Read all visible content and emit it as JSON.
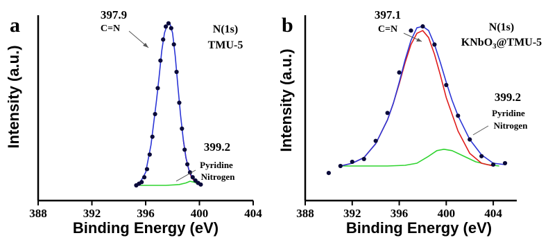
{
  "chart_data": [
    {
      "type": "line",
      "panel_label": "a",
      "xlabel": "Binding Energy (eV)",
      "ylabel": "Intensity (a.u.)",
      "xlim": [
        388,
        404
      ],
      "xticks": [
        388,
        392,
        396,
        400,
        404
      ],
      "ylim": [
        0,
        1.05
      ],
      "legend_text": [
        "N(1s)",
        "TMU-5"
      ],
      "annotations": [
        {
          "id": "peak-main-value",
          "text": "397.9",
          "x": 397.8,
          "y": 1.0
        },
        {
          "id": "peak-main-label",
          "text": "C=N"
        },
        {
          "id": "peak-minor-value",
          "text": "399.2",
          "x": 399.3,
          "y": 0.03
        },
        {
          "id": "peak-minor-label-1",
          "text": "Pyridine"
        },
        {
          "id": "peak-minor-label-2",
          "text": "Nitrogen"
        }
      ],
      "series": [
        {
          "id": "measured",
          "style": "points",
          "color": "#0a0a3a",
          "x": [
            395.3,
            395.5,
            395.7,
            395.9,
            396.1,
            396.3,
            396.5,
            396.7,
            396.9,
            397.1,
            397.3,
            397.5,
            397.7,
            397.9,
            398.1,
            398.3,
            398.5,
            398.7,
            398.9,
            399.1,
            399.3,
            399.5,
            399.7,
            399.9,
            400.1
          ],
          "y": [
            0.0,
            0.01,
            0.02,
            0.05,
            0.1,
            0.19,
            0.3,
            0.44,
            0.6,
            0.77,
            0.9,
            0.98,
            1.0,
            0.97,
            0.87,
            0.7,
            0.51,
            0.35,
            0.22,
            0.13,
            0.08,
            0.05,
            0.03,
            0.015,
            0.005
          ]
        },
        {
          "id": "envelope",
          "style": "line",
          "color": "#2b35d6",
          "x": [
            395.2,
            395.6,
            396.0,
            396.4,
            396.8,
            397.0,
            397.2,
            397.4,
            397.6,
            397.8,
            398.0,
            398.2,
            398.4,
            398.6,
            398.8,
            399.0,
            399.2,
            399.4,
            399.6,
            399.8,
            400.2
          ],
          "y": [
            0.0,
            0.02,
            0.08,
            0.25,
            0.52,
            0.67,
            0.83,
            0.94,
            0.99,
            1.0,
            0.94,
            0.8,
            0.61,
            0.43,
            0.28,
            0.17,
            0.1,
            0.06,
            0.035,
            0.02,
            0.005
          ]
        },
        {
          "id": "component-cn",
          "style": "line",
          "color": "#e01b1b",
          "x": [
            398.8,
            399.0,
            399.2,
            399.4,
            399.6,
            399.8,
            400.0
          ],
          "y": [
            0.28,
            0.17,
            0.1,
            0.05,
            0.03,
            0.015,
            0.005
          ]
        },
        {
          "id": "component-pyridine",
          "style": "line",
          "color": "#2ed32e",
          "x": [
            395.6,
            396.5,
            397.5,
            398.5,
            399.0,
            399.3,
            399.6,
            400.0
          ],
          "y": [
            0.0,
            0.0,
            0.0,
            0.005,
            0.015,
            0.025,
            0.02,
            0.005
          ]
        }
      ]
    },
    {
      "type": "line",
      "panel_label": "b",
      "xlabel": "Binding Energy (eV)",
      "ylabel": "Intensity (a.u.)",
      "xlim": [
        388,
        406
      ],
      "xticks": [
        388,
        392,
        396,
        400,
        404
      ],
      "ylim": [
        0,
        1.08
      ],
      "legend_text": [
        "N(1s)",
        "KNbO",
        "3",
        "@TMU-5"
      ],
      "annotations": [
        {
          "id": "peak-main-value",
          "text": "397.1",
          "x": 397.4,
          "y": 1.0
        },
        {
          "id": "peak-main-label",
          "text": "C=N"
        },
        {
          "id": "peak-minor-value",
          "text": "399.2",
          "x": 399.8,
          "y": 0.15
        },
        {
          "id": "peak-minor-label-1",
          "text": "Pyridine"
        },
        {
          "id": "peak-minor-label-2",
          "text": "Nitrogen"
        }
      ],
      "series": [
        {
          "id": "measured",
          "style": "points",
          "color": "#0a0a3a",
          "x": [
            390,
            391,
            392,
            393,
            394,
            395,
            396,
            397,
            398,
            399,
            400,
            401,
            402,
            403,
            404,
            405
          ],
          "y": [
            -0.05,
            0.0,
            0.03,
            0.05,
            0.18,
            0.38,
            0.67,
            0.97,
            1.0,
            0.87,
            0.58,
            0.36,
            0.19,
            0.07,
            0.01,
            0.02
          ]
        },
        {
          "id": "envelope",
          "style": "line",
          "color": "#2b35d6",
          "x": [
            391,
            392,
            393,
            394,
            395,
            395.5,
            396,
            396.5,
            397,
            397.5,
            398,
            398.5,
            399,
            399.5,
            400,
            400.5,
            401,
            402,
            403,
            404,
            405
          ],
          "y": [
            0.0,
            0.02,
            0.06,
            0.16,
            0.33,
            0.45,
            0.6,
            0.76,
            0.9,
            0.99,
            1.0,
            0.97,
            0.87,
            0.74,
            0.6,
            0.47,
            0.36,
            0.19,
            0.08,
            0.02,
            0.01
          ]
        },
        {
          "id": "component-cn",
          "style": "line",
          "color": "#e01b1b",
          "x": [
            391,
            392,
            393,
            394,
            395,
            395.5,
            396,
            396.5,
            397,
            397.5,
            398,
            398.5,
            399,
            399.5,
            400,
            401,
            402,
            403,
            404
          ],
          "y": [
            0.0,
            0.02,
            0.06,
            0.16,
            0.33,
            0.45,
            0.59,
            0.74,
            0.87,
            0.95,
            0.97,
            0.92,
            0.8,
            0.65,
            0.49,
            0.25,
            0.09,
            0.02,
            0.0
          ]
        },
        {
          "id": "component-pyridine",
          "style": "line",
          "color": "#2ed32e",
          "x": [
            391,
            393,
            395,
            396.5,
            397.5,
            398.5,
            399.2,
            399.8,
            400.5,
            401.5,
            402.5,
            403.5,
            404.5
          ],
          "y": [
            0.0,
            0.0,
            0.0,
            0.005,
            0.02,
            0.07,
            0.11,
            0.12,
            0.11,
            0.07,
            0.03,
            0.01,
            0.0
          ]
        }
      ]
    }
  ]
}
